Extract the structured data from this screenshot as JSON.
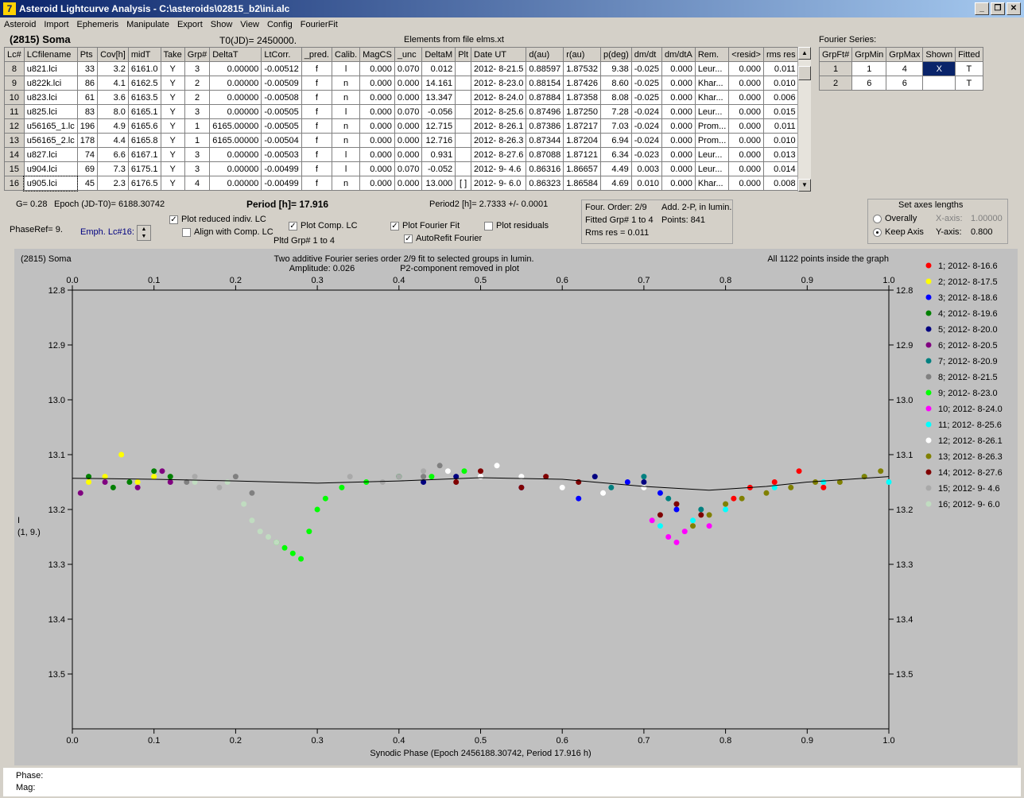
{
  "window": {
    "title": "Asteroid Lightcurve Analysis - C:\\asteroids\\02815_b2\\ini.alc"
  },
  "menu": [
    "Asteroid",
    "Import",
    "Ephemeris",
    "Manipulate",
    "Export",
    "Show",
    "View",
    "Config",
    "FourierFit"
  ],
  "header": {
    "asteroid": "(2815) Soma",
    "t0": "T0(JD)= 2450000.",
    "elements": "Elements from file elms.xt",
    "fourier_series_label": "Fourier Series:"
  },
  "lc_table": {
    "columns": [
      "Lc#",
      "LCfilename",
      "Pts",
      "Cov[h]",
      "midT",
      "Take",
      "Grp#",
      "DeltaT",
      "LtCorr.",
      "_pred.",
      "Calib.",
      "MagCS",
      "_unc",
      "DeltaM",
      "Plt",
      "Date UT",
      "d(au)",
      "r(au)",
      "p(deg)",
      "dm/dt",
      "dm/dtA",
      "Rem.",
      "<resid>",
      "rms res"
    ],
    "rows": [
      [
        "8",
        "u821.lci",
        "33",
        "3.2",
        "6161.0",
        "Y",
        "3",
        "0.00000",
        "-0.00512",
        "f",
        "l",
        "0.000",
        "0.070",
        "0.012",
        "",
        "2012- 8-21.5",
        "0.88597",
        "1.87532",
        "9.38",
        "-0.025",
        "0.000",
        "Leur...",
        "0.000",
        "0.011"
      ],
      [
        "9",
        "u822k.lci",
        "86",
        "4.1",
        "6162.5",
        "Y",
        "2",
        "0.00000",
        "-0.00509",
        "f",
        "n",
        "0.000",
        "0.000",
        "14.161",
        "",
        "2012- 8-23.0",
        "0.88154",
        "1.87426",
        "8.60",
        "-0.025",
        "0.000",
        "Khar...",
        "0.000",
        "0.010"
      ],
      [
        "10",
        "u823.lci",
        "61",
        "3.6",
        "6163.5",
        "Y",
        "2",
        "0.00000",
        "-0.00508",
        "f",
        "n",
        "0.000",
        "0.000",
        "13.347",
        "",
        "2012- 8-24.0",
        "0.87884",
        "1.87358",
        "8.08",
        "-0.025",
        "0.000",
        "Khar...",
        "0.000",
        "0.006"
      ],
      [
        "11",
        "u825.lci",
        "83",
        "8.0",
        "6165.1",
        "Y",
        "3",
        "0.00000",
        "-0.00505",
        "f",
        "l",
        "0.000",
        "0.070",
        "-0.056",
        "",
        "2012- 8-25.6",
        "0.87496",
        "1.87250",
        "7.28",
        "-0.024",
        "0.000",
        "Leur...",
        "0.000",
        "0.015"
      ],
      [
        "12",
        "u56165_1.lc",
        "196",
        "4.9",
        "6165.6",
        "Y",
        "1",
        "6165.00000",
        "-0.00505",
        "f",
        "n",
        "0.000",
        "0.000",
        "12.715",
        "",
        "2012- 8-26.1",
        "0.87386",
        "1.87217",
        "7.03",
        "-0.024",
        "0.000",
        "Prom...",
        "0.000",
        "0.011"
      ],
      [
        "13",
        "u56165_2.lc",
        "178",
        "4.4",
        "6165.8",
        "Y",
        "1",
        "6165.00000",
        "-0.00504",
        "f",
        "n",
        "0.000",
        "0.000",
        "12.716",
        "",
        "2012- 8-26.3",
        "0.87344",
        "1.87204",
        "6.94",
        "-0.024",
        "0.000",
        "Prom...",
        "0.000",
        "0.010"
      ],
      [
        "14",
        "u827.lci",
        "74",
        "6.6",
        "6167.1",
        "Y",
        "3",
        "0.00000",
        "-0.00503",
        "f",
        "l",
        "0.000",
        "0.000",
        "0.931",
        "",
        "2012- 8-27.6",
        "0.87088",
        "1.87121",
        "6.34",
        "-0.023",
        "0.000",
        "Leur...",
        "0.000",
        "0.013"
      ],
      [
        "15",
        "u904.lci",
        "69",
        "7.3",
        "6175.1",
        "Y",
        "3",
        "0.00000",
        "-0.00499",
        "f",
        "l",
        "0.000",
        "0.070",
        "-0.052",
        "",
        "2012- 9- 4.6",
        "0.86316",
        "1.86657",
        "4.49",
        "0.003",
        "0.000",
        "Leur...",
        "0.000",
        "0.014"
      ],
      [
        "16",
        "u905.lci",
        "45",
        "2.3",
        "6176.5",
        "Y",
        "4",
        "0.00000",
        "-0.00499",
        "f",
        "n",
        "0.000",
        "0.000",
        "13.000",
        "[ ]",
        "2012- 9- 6.0",
        "0.86323",
        "1.86584",
        "4.69",
        "0.010",
        "0.000",
        "Khar...",
        "0.000",
        "0.008"
      ]
    ]
  },
  "fourier_table": {
    "columns": [
      "GrpFt#",
      "GrpMin",
      "GrpMax",
      "Shown",
      "Fitted"
    ],
    "rows": [
      [
        "1",
        "1",
        "4",
        "X",
        "T"
      ],
      [
        "2",
        "6",
        "6",
        "",
        "T"
      ]
    ]
  },
  "controls": {
    "g": "G= 0.28",
    "epoch": "Epoch (JD-T0)= 6188.30742",
    "period": "Period [h]= 17.916",
    "period2": "Period2 [h]= 2.7333 +/- 0.0001",
    "phaseref": "PhaseRef= 9.",
    "emph": "Emph. Lc#16:",
    "plot_reduced": "Plot reduced indiv. LC",
    "align_comp": "Align with Comp. LC",
    "plot_comp": "Plot Comp. LC",
    "pltd_grp": "Pltd Grp#  1   to    4",
    "plot_fourier": "Plot Fourier Fit",
    "autorefit": "AutoRefit Fourier",
    "plot_residuals": "Plot residuals",
    "four_order": "Four. Order:  2/9",
    "add2p": "Add. 2-P, in lumin.",
    "fitted_grp": "Fitted Grp# 1 to 4",
    "points": "Points: 841",
    "rms": "Rms res     = 0.011",
    "axes_title": "Set axes lengths",
    "overally": "Overally",
    "keep_axis": "Keep Axis",
    "xaxis_label": "X-axis:",
    "xaxis_val": "1.00000",
    "yaxis_label": "Y-axis:",
    "yaxis_val": "0.800"
  },
  "chart_data": {
    "type": "scatter",
    "title_left": "(2815) Soma",
    "title": "Two additive Fourier series order 2/9 fit to selected groups in lumin.",
    "subtitle_amp": "Amplitude: 0.026",
    "subtitle_p2": "P2-component removed in plot",
    "note_right": "All 1122 points inside the graph",
    "xlabel": "Synodic Phase (Epoch 2456188.30742, Period 17.916 h)",
    "ylabel": "I",
    "ylabel2": "(1, 9.)",
    "xlim": [
      0.0,
      1.0
    ],
    "ylim": [
      12.8,
      13.6
    ],
    "y_inverted": true,
    "xticks": [
      "0.0",
      "0.1",
      "0.2",
      "0.3",
      "0.4",
      "0.5",
      "0.6",
      "0.7",
      "0.8",
      "0.9",
      "1.0"
    ],
    "yticks": [
      "12.8",
      "12.9",
      "13.0",
      "13.1",
      "13.2",
      "13.3",
      "13.4",
      "13.5"
    ],
    "fit_curve": [
      [
        0.0,
        13.143
      ],
      [
        0.1,
        13.145
      ],
      [
        0.2,
        13.148
      ],
      [
        0.3,
        13.152
      ],
      [
        0.4,
        13.148
      ],
      [
        0.5,
        13.142
      ],
      [
        0.6,
        13.145
      ],
      [
        0.7,
        13.158
      ],
      [
        0.78,
        13.165
      ],
      [
        0.85,
        13.158
      ],
      [
        0.9,
        13.15
      ],
      [
        1.0,
        13.14
      ]
    ],
    "series": [
      {
        "name": "1; 2012- 8-16.6",
        "color": "#ff0000",
        "points": [
          [
            0.81,
            13.18
          ],
          [
            0.83,
            13.16
          ],
          [
            0.86,
            13.15
          ],
          [
            0.89,
            13.13
          ],
          [
            0.92,
            13.16
          ]
        ]
      },
      {
        "name": "2; 2012- 8-17.5",
        "color": "#ffff00",
        "points": [
          [
            0.02,
            13.15
          ],
          [
            0.04,
            13.14
          ],
          [
            0.06,
            13.1
          ],
          [
            0.08,
            13.15
          ],
          [
            0.1,
            13.14
          ]
        ]
      },
      {
        "name": "3; 2012- 8-18.6",
        "color": "#0000ff",
        "points": [
          [
            0.55,
            13.16
          ],
          [
            0.62,
            13.18
          ],
          [
            0.68,
            13.15
          ],
          [
            0.72,
            13.17
          ],
          [
            0.74,
            13.2
          ]
        ]
      },
      {
        "name": "4; 2012- 8-19.6",
        "color": "#008000",
        "points": [
          [
            0.02,
            13.14
          ],
          [
            0.05,
            13.16
          ],
          [
            0.07,
            13.15
          ],
          [
            0.1,
            13.13
          ],
          [
            0.12,
            13.14
          ]
        ]
      },
      {
        "name": "5; 2012- 8-20.0",
        "color": "#000080",
        "points": [
          [
            0.4,
            13.14
          ],
          [
            0.43,
            13.15
          ],
          [
            0.47,
            13.14
          ],
          [
            0.64,
            13.14
          ],
          [
            0.7,
            13.15
          ]
        ]
      },
      {
        "name": "6; 2012- 8-20.5",
        "color": "#800080",
        "points": [
          [
            0.01,
            13.17
          ],
          [
            0.04,
            13.15
          ],
          [
            0.08,
            13.16
          ],
          [
            0.11,
            13.13
          ],
          [
            0.12,
            13.15
          ]
        ]
      },
      {
        "name": "7; 2012- 8-20.9",
        "color": "#008080",
        "points": [
          [
            0.66,
            13.16
          ],
          [
            0.7,
            13.14
          ],
          [
            0.73,
            13.18
          ],
          [
            0.77,
            13.2
          ]
        ]
      },
      {
        "name": "8; 2012- 8-21.5",
        "color": "#808080",
        "points": [
          [
            0.14,
            13.15
          ],
          [
            0.2,
            13.14
          ],
          [
            0.22,
            13.17
          ],
          [
            0.43,
            13.14
          ],
          [
            0.45,
            13.12
          ]
        ]
      },
      {
        "name": "9; 2012- 8-23.0",
        "color": "#00ff00",
        "points": [
          [
            0.25,
            13.26
          ],
          [
            0.26,
            13.27
          ],
          [
            0.27,
            13.28
          ],
          [
            0.28,
            13.29
          ],
          [
            0.29,
            13.24
          ],
          [
            0.3,
            13.2
          ],
          [
            0.31,
            13.18
          ],
          [
            0.33,
            13.16
          ],
          [
            0.36,
            13.15
          ],
          [
            0.4,
            13.14
          ],
          [
            0.44,
            13.14
          ],
          [
            0.48,
            13.13
          ]
        ]
      },
      {
        "name": "10; 2012- 8-24.0",
        "color": "#ff00ff",
        "points": [
          [
            0.71,
            13.22
          ],
          [
            0.73,
            13.25
          ],
          [
            0.74,
            13.26
          ],
          [
            0.75,
            13.24
          ],
          [
            0.78,
            13.23
          ]
        ]
      },
      {
        "name": "11; 2012- 8-25.6",
        "color": "#00ffff",
        "points": [
          [
            0.72,
            13.23
          ],
          [
            0.76,
            13.22
          ],
          [
            0.8,
            13.2
          ],
          [
            0.86,
            13.16
          ],
          [
            0.92,
            13.15
          ],
          [
            0.97,
            13.14
          ],
          [
            1.0,
            13.15
          ]
        ]
      },
      {
        "name": "12; 2012- 8-26.1",
        "color": "#ffffff",
        "points": [
          [
            0.46,
            13.13
          ],
          [
            0.5,
            13.14
          ],
          [
            0.52,
            13.12
          ],
          [
            0.55,
            13.14
          ],
          [
            0.6,
            13.16
          ],
          [
            0.65,
            13.17
          ],
          [
            0.7,
            13.16
          ]
        ]
      },
      {
        "name": "13; 2012- 8-26.3",
        "color": "#808000",
        "points": [
          [
            0.76,
            13.23
          ],
          [
            0.78,
            13.21
          ],
          [
            0.8,
            13.19
          ],
          [
            0.82,
            13.18
          ],
          [
            0.85,
            13.17
          ],
          [
            0.88,
            13.16
          ],
          [
            0.91,
            13.15
          ],
          [
            0.94,
            13.15
          ],
          [
            0.97,
            13.14
          ],
          [
            0.99,
            13.13
          ]
        ]
      },
      {
        "name": "14; 2012- 8-27.6",
        "color": "#800000",
        "points": [
          [
            0.47,
            13.15
          ],
          [
            0.5,
            13.13
          ],
          [
            0.55,
            13.16
          ],
          [
            0.58,
            13.14
          ],
          [
            0.62,
            13.15
          ],
          [
            0.72,
            13.21
          ],
          [
            0.74,
            13.19
          ],
          [
            0.77,
            13.21
          ]
        ]
      },
      {
        "name": "15; 2012- 9- 4.6",
        "color": "#a9a9a9",
        "points": [
          [
            0.15,
            13.14
          ],
          [
            0.18,
            13.16
          ],
          [
            0.34,
            13.14
          ],
          [
            0.38,
            13.15
          ],
          [
            0.4,
            13.14
          ],
          [
            0.43,
            13.13
          ]
        ]
      },
      {
        "name": "16; 2012- 9- 6.0",
        "color": "#c0dcc0",
        "points": [
          [
            0.15,
            13.15
          ],
          [
            0.19,
            13.15
          ],
          [
            0.21,
            13.19
          ],
          [
            0.22,
            13.22
          ],
          [
            0.23,
            13.24
          ],
          [
            0.24,
            13.25
          ],
          [
            0.25,
            13.26
          ]
        ]
      }
    ]
  },
  "status": {
    "phase": "Phase:",
    "mag": "Mag:"
  }
}
